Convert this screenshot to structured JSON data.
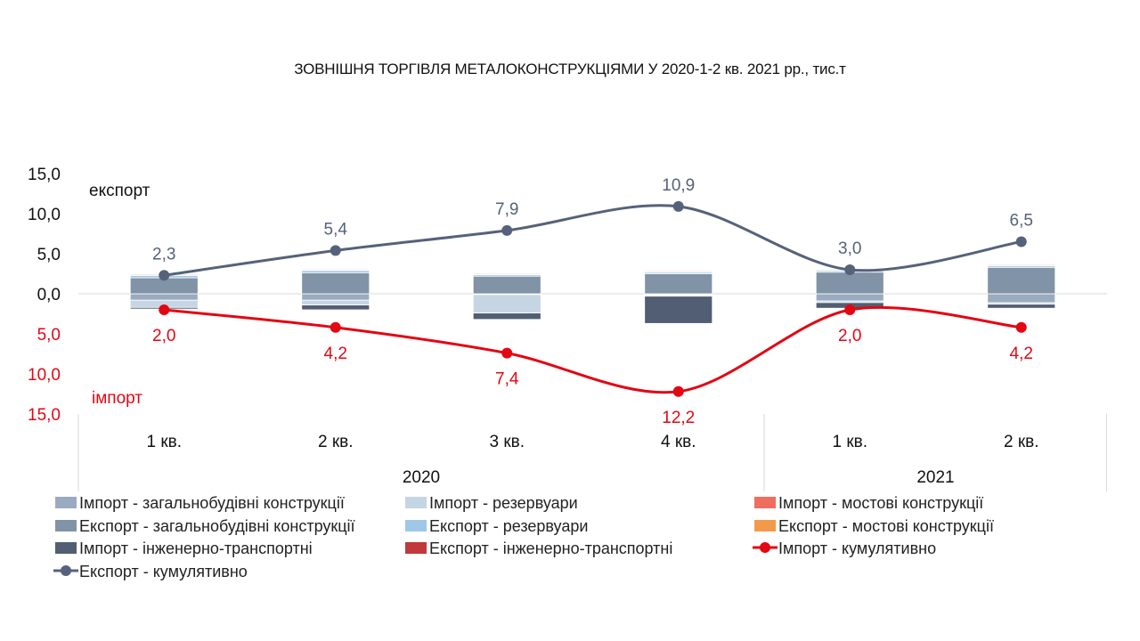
{
  "chart_data": {
    "type": "bar",
    "title": "ЗОВНІШНЯ ТОРГІВЛЯ МЕТАЛОКОНСТРУКЦІЯМИ У 2020-1-2 кв. 2021 рр., тис.т",
    "categories": [
      "1 кв.",
      "2 кв.",
      "3 кв.",
      "4 кв.",
      "1 кв.",
      "2 кв."
    ],
    "years": [
      {
        "label": "2020",
        "span": [
          0,
          3
        ]
      },
      {
        "label": "2021",
        "span": [
          4,
          5
        ]
      }
    ],
    "ylim": [
      -15,
      15
    ],
    "yticks": [
      {
        "value": 15,
        "label": "15,0",
        "color": "#111111"
      },
      {
        "value": 10,
        "label": "10,0",
        "color": "#111111"
      },
      {
        "value": 5,
        "label": "5,0",
        "color": "#111111"
      },
      {
        "value": 0,
        "label": "0,0",
        "color": "#111111"
      },
      {
        "value": -5,
        "label": "5,0",
        "color": "#e30613"
      },
      {
        "value": -10,
        "label": "10,0",
        "color": "#e30613"
      },
      {
        "value": -15,
        "label": "15,0",
        "color": "#e30613"
      }
    ],
    "axis_annotations": {
      "export": "експорт",
      "import": "імпорт"
    },
    "grid": false,
    "legend_position": "bottom",
    "series": [
      {
        "name": "Імпорт - загальнобудівні конструкції",
        "kind": "bar",
        "color": "#9aabbf",
        "values": [
          -0.8,
          -0.8,
          -0.1,
          -0.1,
          -0.9,
          -1.1
        ]
      },
      {
        "name": "Імпорт - резервуари",
        "kind": "bar",
        "color": "#c5d5e3",
        "values": [
          -0.9,
          -0.6,
          -2.3,
          -0.1,
          -0.2,
          -0.2
        ]
      },
      {
        "name": "Імпорт - мостові конструкції",
        "kind": "bar",
        "color": "#ef6e5e",
        "values": [
          0,
          0,
          0,
          -0.1,
          0,
          0
        ]
      },
      {
        "name": "Експорт - загальнобудівні конструкції",
        "kind": "bar",
        "color": "#8193a6",
        "values": [
          2.0,
          2.6,
          2.2,
          2.5,
          2.7,
          3.3
        ]
      },
      {
        "name": "Експорт - резервуари",
        "kind": "bar",
        "color": "#9fc7e6",
        "values": [
          0.3,
          0.3,
          0.2,
          0.2,
          0.2,
          0.2
        ]
      },
      {
        "name": "Експорт - мостові конструкції",
        "kind": "bar",
        "color": "#f39a4a",
        "values": [
          0.05,
          0.05,
          0.05,
          0.05,
          0.05,
          0.05
        ]
      },
      {
        "name": "Імпорт - інженерно-транспортні",
        "kind": "bar",
        "color": "#515e73",
        "values": [
          -0.2,
          -0.6,
          -0.8,
          -3.4,
          -0.7,
          -0.5
        ]
      },
      {
        "name": "Експорт - інженерно-транспортні",
        "kind": "bar",
        "color": "#c0393b",
        "values": [
          0.1,
          0.1,
          0.1,
          0.1,
          0.1,
          0.1
        ]
      },
      {
        "name": "Імпорт - кумулятивно",
        "kind": "line",
        "color": "#e30613",
        "values": [
          -2.0,
          -4.2,
          -7.4,
          -12.2,
          -2.0,
          -4.2
        ],
        "labels": [
          "2,0",
          "4,2",
          "7,4",
          "12,2",
          "2,0",
          "4,2"
        ]
      },
      {
        "name": "Експорт - кумулятивно",
        "kind": "line",
        "color": "#56627a",
        "values": [
          2.3,
          5.4,
          7.9,
          10.9,
          3.0,
          6.5
        ],
        "labels": [
          "2,3",
          "5,4",
          "7,9",
          "10,9",
          "3,0",
          "6,5"
        ]
      }
    ]
  }
}
